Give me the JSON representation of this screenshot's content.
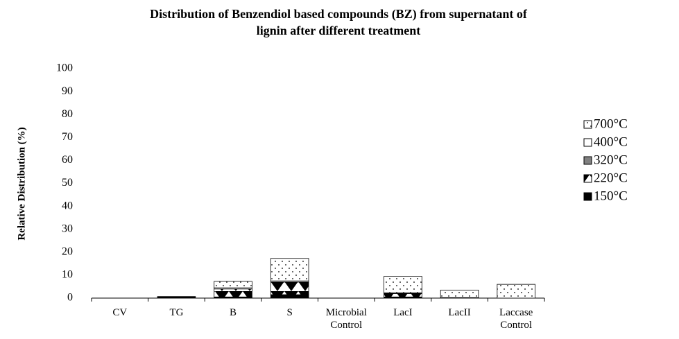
{
  "chart_data": {
    "type": "stacked-bar",
    "title": [
      "Distribution of Benzendiol based compounds (BZ)  from supernatant of",
      "lignin after different treatment"
    ],
    "y_label": "Relative Distribution (%)",
    "categories": [
      "CV",
      "TG",
      "B",
      "S",
      "Microbial Control",
      "LacI",
      "LacII",
      "Laccase Control"
    ],
    "series": [
      {
        "name": "150°C",
        "color": "#000000",
        "values": [
          0,
          0.5,
          0.5,
          1.5,
          0,
          0.5,
          0.2,
          0
        ]
      },
      {
        "name": "220°C",
        "color": "#ffffff",
        "pattern": "zigzag",
        "values": [
          0,
          0,
          3.5,
          5.5,
          0,
          1.5,
          0,
          0
        ]
      },
      {
        "name": "320°C",
        "color": "#808080",
        "values": [
          0,
          0,
          0,
          0,
          0,
          0,
          0,
          0
        ]
      },
      {
        "name": "400°C",
        "color": "#ffffff",
        "values": [
          0,
          0,
          0.5,
          0.5,
          0,
          0.3,
          0,
          0
        ]
      },
      {
        "name": "700°C",
        "color": "#ffffff",
        "pattern": "dots",
        "values": [
          0,
          0.2,
          2.8,
          9.8,
          0,
          7.2,
          3.3,
          6
        ]
      }
    ],
    "ylim": [
      0,
      100
    ],
    "yticks": [
      0,
      10,
      20,
      30,
      40,
      50,
      60,
      70,
      80,
      90,
      100
    ],
    "grid": false,
    "legend": "right"
  }
}
